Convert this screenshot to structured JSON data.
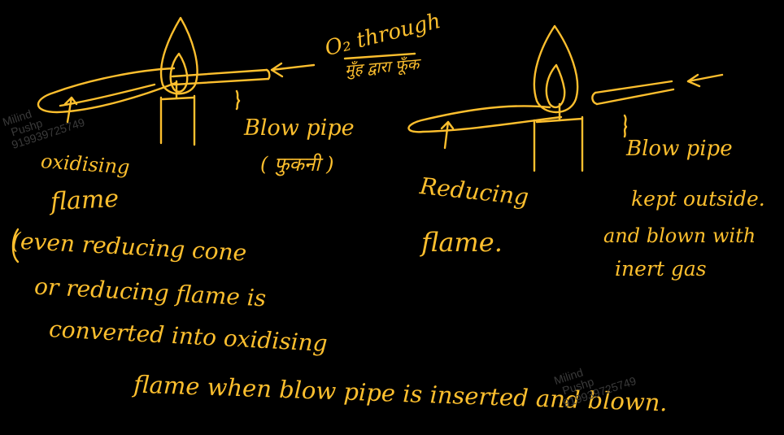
{
  "ink_color": "#FDBF2E",
  "background_color": "#000000",
  "left_diagram": {
    "o2_label": "O₂ through",
    "hindi_label": "मुँह द्वारा फूँक",
    "blowpipe_label": "Blow pipe",
    "blowpipe_hindi": "( फुकनी )",
    "flame_label_1": "oxidising",
    "flame_label_2": "flame"
  },
  "right_diagram": {
    "flame_label_1": "Reducing",
    "flame_label_2": "flame.",
    "blowpipe_label": "Blow pipe",
    "note_1": "kept outside.",
    "note_2": "and blown with",
    "note_3": "inert gas"
  },
  "explanation": {
    "line_1": "(even reducing cone",
    "line_2": "or reducing flame is",
    "line_3": "converted into oxidising",
    "line_4": "flame when blow pipe is inserted and blown."
  },
  "watermark": {
    "name_1": "Milind",
    "name_2": "Pushp",
    "phone": "919939725749"
  }
}
